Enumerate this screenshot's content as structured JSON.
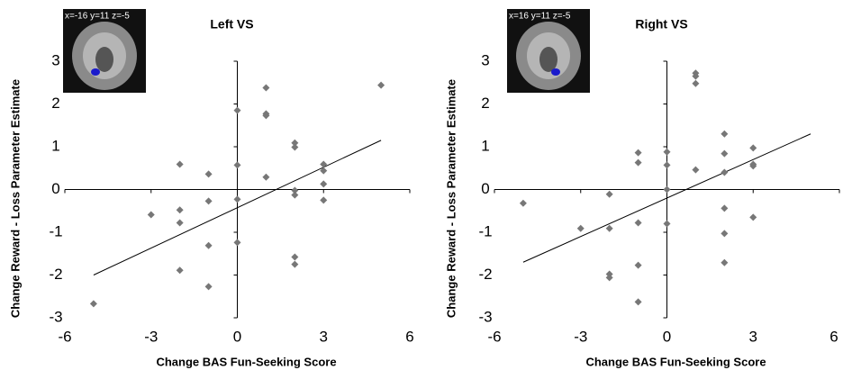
{
  "chart_data": [
    {
      "type": "scatter",
      "title": "Left VS",
      "inset_label": "x=-16 y=11 z=-5",
      "xlabel": "Change BAS Fun-Seeking Score",
      "ylabel": "Change Reward - Loss Parameter Estimate",
      "color": "#777777",
      "x": [
        -5,
        -3,
        -2,
        -2,
        -2,
        -2,
        -1,
        -1,
        -1,
        -1,
        0,
        0,
        0,
        0,
        1,
        1,
        1,
        1,
        2,
        2,
        2,
        2,
        2,
        2,
        3,
        3,
        3,
        3,
        5
      ],
      "values": [
        -2.67,
        -0.59,
        0.59,
        -0.48,
        -0.78,
        -1.89,
        0.36,
        -0.27,
        -1.31,
        -2.27,
        1.85,
        0.57,
        -0.23,
        -1.24,
        2.38,
        1.77,
        1.73,
        0.29,
        1.09,
        0.99,
        -0.02,
        -0.13,
        -1.58,
        -1.75,
        0.59,
        0.44,
        0.13,
        -0.25,
        2.44
      ],
      "trend_x": [
        -5,
        5
      ],
      "trend_y": [
        -2.0,
        1.15
      ],
      "xlim": [
        -6,
        6
      ],
      "ylim": [
        -3,
        3
      ],
      "xticks": [
        -6,
        -3,
        0,
        3,
        6
      ],
      "yticks": [
        -3,
        -2,
        -1,
        0,
        1,
        2,
        3
      ]
    },
    {
      "type": "scatter",
      "title": "Right VS",
      "inset_label": "x=16 y=11 z=-5",
      "xlabel": "Change BAS Fun-Seeking Score",
      "ylabel": "Change Reward - Loss Parameter Estimate",
      "color": "#777777",
      "x": [
        -5,
        -3,
        -2,
        -2,
        -2,
        -2,
        -1,
        -1,
        -1,
        -1,
        -1,
        0,
        0,
        0,
        0,
        1,
        1,
        1,
        1,
        2,
        2,
        2,
        2,
        2,
        2,
        3,
        3,
        3,
        3
      ],
      "values": [
        -0.32,
        -0.91,
        -0.11,
        -0.91,
        -1.98,
        -2.06,
        0.86,
        0.63,
        -0.78,
        -1.77,
        -2.63,
        0.88,
        0.57,
        0.0,
        -0.8,
        2.72,
        2.65,
        2.48,
        0.46,
        1.3,
        0.84,
        0.4,
        -0.44,
        -1.03,
        -1.71,
        0.97,
        0.59,
        0.55,
        -0.65
      ],
      "trend_x": [
        -5,
        5
      ],
      "trend_y": [
        -1.7,
        1.3
      ],
      "xlim": [
        -6,
        6
      ],
      "ylim": [
        -3,
        3
      ],
      "xticks": [
        -6,
        -3,
        0,
        3,
        6
      ],
      "yticks": [
        -3,
        -2,
        -1,
        0,
        1,
        2,
        3
      ]
    }
  ]
}
